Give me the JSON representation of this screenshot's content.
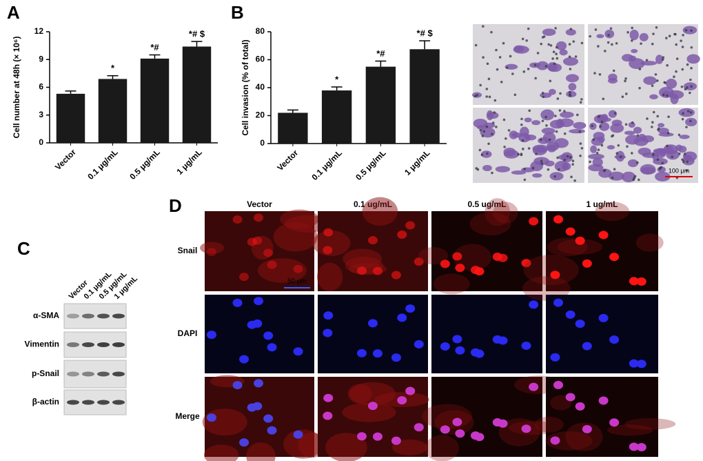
{
  "chart_data": [
    {
      "type": "bar",
      "panel": "A",
      "y_label": "Cell number at 48h (× 10⁶)",
      "categories": [
        "Vector",
        "0.1 μg/mL",
        "0.5 μg/mL",
        "1 μg/mL"
      ],
      "values": [
        5.3,
        6.9,
        9.1,
        10.4
      ],
      "errors": [
        0.3,
        0.35,
        0.4,
        0.55
      ],
      "annotations": [
        null,
        "*",
        "*#",
        "*# $"
      ],
      "color": "#1a1a1a",
      "ylim": [
        0,
        12
      ],
      "yticks": [
        0,
        3,
        6,
        9,
        12
      ]
    },
    {
      "type": "bar",
      "panel": "B",
      "y_label": "Cell invasion (% of total)",
      "categories": [
        "Vector",
        "0.1 μg/mL",
        "0.5 μg/mL",
        "1 μg/mL"
      ],
      "values": [
        22,
        38,
        55,
        67.5
      ],
      "errors": [
        2,
        2.5,
        4,
        6
      ],
      "annotations": [
        null,
        "*",
        "*#",
        "*# $"
      ],
      "color": "#1a1a1a",
      "ylim": [
        0,
        80
      ],
      "yticks": [
        0,
        20,
        40,
        60,
        80
      ]
    }
  ],
  "invasion_images": {
    "scale_bar": "100 μm"
  },
  "blot": {
    "panel": "C",
    "lanes": [
      "Vector",
      "0.1 μg/mL",
      "0.5 μg/mL",
      "1 μg/mL"
    ],
    "rows": [
      "α-SMA",
      "Vimentin",
      "p-Snail",
      "β-actin"
    ]
  },
  "immunofluorescence": {
    "panel": "D",
    "columns": [
      "Vector",
      "0.1 ug/mL",
      "0.5 ug/mL",
      "1 ug/mL"
    ],
    "rows": [
      "Snail",
      "DAPI",
      "Merge"
    ],
    "scale_bar": "50 μm"
  }
}
